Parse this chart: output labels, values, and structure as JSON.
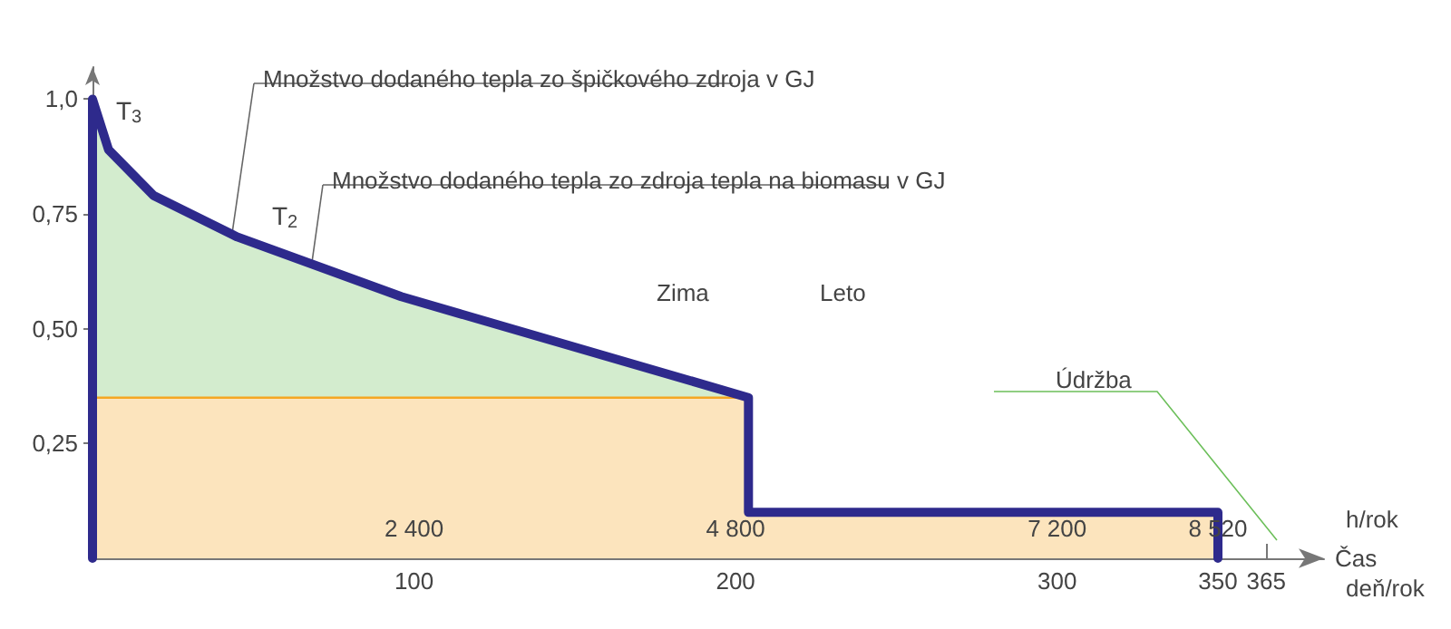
{
  "chart_data": {
    "type": "line",
    "xlabel": "Čas",
    "x": [
      0,
      0,
      5,
      19,
      45,
      96,
      204,
      204,
      350,
      350
    ],
    "series": [
      {
        "color": "#2e2a8c",
        "values": [
          0,
          1.0,
          0.89,
          0.79,
          0.7,
          0.57,
          0.35,
          0.1,
          0.1,
          0
        ]
      },
      {
        "type": "area",
        "color": "#6cbf5a",
        "x": [
          0,
          5,
          19,
          45,
          96,
          204
        ],
        "values": [
          1.0,
          0.89,
          0.79,
          0.7,
          0.57,
          0.35
        ]
      },
      {
        "type": "area",
        "color": "#f5a623",
        "x": [
          0,
          204,
          204,
          350
        ],
        "values": [
          0.35,
          0.35,
          0.1,
          0.1
        ]
      }
    ],
    "xlim": [
      0,
      383
    ],
    "xticks": [
      100,
      200,
      300,
      350,
      365
    ],
    "ylim": [
      0,
      1.07
    ],
    "yticks": [
      {
        "value": 0.25,
        "label": "0,25"
      },
      {
        "value": 0.5,
        "label": "0,50"
      },
      {
        "value": 0.75,
        "label": "0,75"
      },
      {
        "value": 1.0,
        "label": "1,0"
      }
    ],
    "annotations": [
      {
        "text": "2 400",
        "x": 100,
        "y": 0
      },
      {
        "text": "4 800",
        "x": 200,
        "y": 0
      },
      {
        "text": "7 200",
        "x": 300,
        "y": 0
      },
      {
        "text": "8 520",
        "x": 350,
        "y": 0
      },
      "Množstvo dodaného tepla zo špičkového zdroja v GJ",
      "Množstvo dodaného tepla zo zdroja tepla na biomasu v GJ",
      "T$_{3}$",
      "T$_{2}$",
      "Zima",
      "Leto",
      "Údržba",
      "h/rok",
      "deň/rok"
    ],
    "grid": false,
    "marker": "none",
    "line_style": "solid"
  }
}
